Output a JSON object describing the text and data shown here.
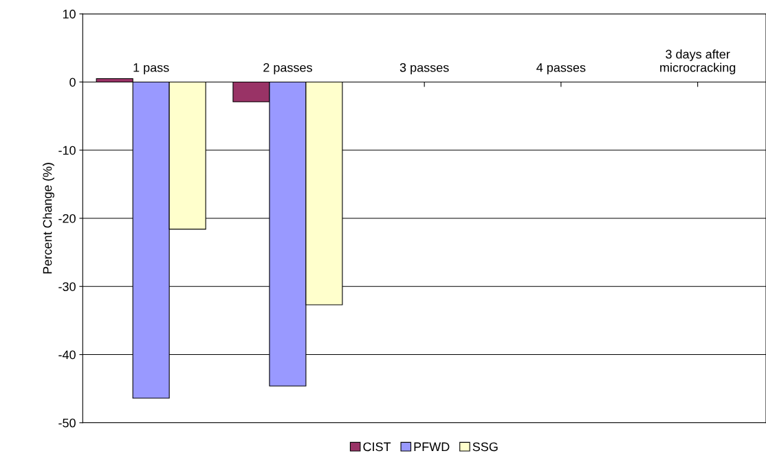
{
  "chart_data": {
    "type": "bar",
    "ylabel": "Percent Change (%)",
    "categories": [
      "1 pass",
      "2 passes",
      "3 passes",
      "4 passes",
      "3 days after\nmicrocracking"
    ],
    "series": [
      {
        "name": "CIST",
        "color": "#993366",
        "values": [
          0.5,
          -2.9,
          null,
          null,
          null
        ]
      },
      {
        "name": "PFWD",
        "color": "#9999ff",
        "values": [
          -46.4,
          -44.6,
          null,
          null,
          null
        ]
      },
      {
        "name": "SSG",
        "color": "#ffffcc",
        "values": [
          -21.6,
          -32.7,
          null,
          null,
          null
        ]
      }
    ],
    "ylim": [
      -50,
      10
    ],
    "yticks": [
      -50,
      -40,
      -30,
      -20,
      -10,
      0,
      10
    ],
    "grid": "y",
    "legend": "bottom"
  }
}
